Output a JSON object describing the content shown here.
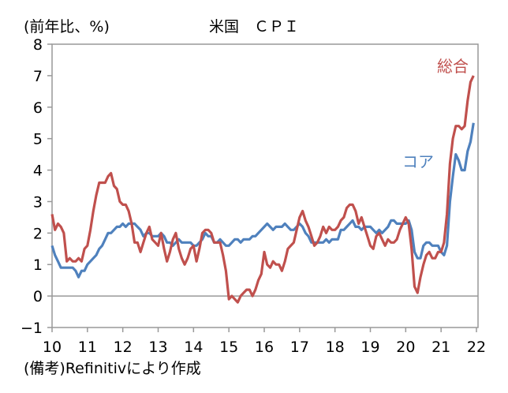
{
  "chart_data": {
    "type": "line",
    "title": "米国　ＣＰＩ",
    "ylabel": "(前年比、%)",
    "source": "(備考)Refinitivにより作成",
    "x_start": "2010-01",
    "x_end": "2021-12",
    "x_frequency": "monthly",
    "x_tick_labels": [
      "10",
      "11",
      "12",
      "13",
      "14",
      "15",
      "16",
      "17",
      "18",
      "19",
      "20",
      "21",
      "22"
    ],
    "ylim": [
      -1,
      8
    ],
    "y_tick_labels": [
      "−1",
      "0",
      "1",
      "2",
      "3",
      "4",
      "5",
      "6",
      "7",
      "8"
    ],
    "grid": false,
    "series": [
      {
        "name": "総合",
        "color": "#C0504D",
        "values": [
          2.6,
          2.1,
          2.3,
          2.2,
          2.0,
          1.1,
          1.2,
          1.1,
          1.1,
          1.2,
          1.1,
          1.5,
          1.6,
          2.1,
          2.7,
          3.2,
          3.6,
          3.6,
          3.6,
          3.8,
          3.9,
          3.5,
          3.4,
          3.0,
          2.9,
          2.9,
          2.7,
          2.3,
          1.7,
          1.7,
          1.4,
          1.7,
          2.0,
          2.2,
          1.8,
          1.7,
          1.6,
          2.0,
          1.5,
          1.1,
          1.4,
          1.8,
          2.0,
          1.5,
          1.2,
          1.0,
          1.2,
          1.5,
          1.6,
          1.1,
          1.5,
          2.0,
          2.1,
          2.1,
          2.0,
          1.7,
          1.7,
          1.7,
          1.3,
          0.8,
          -0.1,
          0.0,
          -0.1,
          -0.2,
          0.0,
          0.1,
          0.2,
          0.2,
          0.0,
          0.2,
          0.5,
          0.7,
          1.4,
          1.0,
          0.9,
          1.1,
          1.0,
          1.0,
          0.8,
          1.1,
          1.5,
          1.6,
          1.7,
          2.1,
          2.5,
          2.7,
          2.4,
          2.2,
          1.9,
          1.6,
          1.7,
          1.9,
          2.2,
          2.0,
          2.2,
          2.1,
          2.1,
          2.2,
          2.4,
          2.5,
          2.8,
          2.9,
          2.9,
          2.7,
          2.3,
          2.5,
          2.2,
          1.9,
          1.6,
          1.5,
          1.9,
          2.0,
          1.8,
          1.6,
          1.8,
          1.7,
          1.7,
          1.8,
          2.1,
          2.3,
          2.5,
          2.3,
          1.5,
          0.3,
          0.1,
          0.6,
          1.0,
          1.3,
          1.4,
          1.2,
          1.2,
          1.4,
          1.4,
          1.7,
          2.6,
          4.2,
          5.0,
          5.4,
          5.4,
          5.3,
          5.4,
          6.2,
          6.8,
          7.0
        ]
      },
      {
        "name": "コア",
        "color": "#4F81BD",
        "values": [
          1.6,
          1.3,
          1.1,
          0.9,
          0.9,
          0.9,
          0.9,
          0.9,
          0.8,
          0.6,
          0.8,
          0.8,
          1.0,
          1.1,
          1.2,
          1.3,
          1.5,
          1.6,
          1.8,
          2.0,
          2.0,
          2.1,
          2.2,
          2.2,
          2.3,
          2.2,
          2.3,
          2.3,
          2.3,
          2.2,
          2.1,
          1.9,
          2.0,
          2.0,
          1.9,
          1.9,
          1.9,
          2.0,
          1.9,
          1.7,
          1.7,
          1.6,
          1.7,
          1.8,
          1.7,
          1.7,
          1.7,
          1.7,
          1.6,
          1.6,
          1.7,
          1.8,
          2.0,
          1.9,
          1.9,
          1.7,
          1.7,
          1.8,
          1.7,
          1.6,
          1.6,
          1.7,
          1.8,
          1.8,
          1.7,
          1.8,
          1.8,
          1.8,
          1.9,
          1.9,
          2.0,
          2.1,
          2.2,
          2.3,
          2.2,
          2.1,
          2.2,
          2.2,
          2.2,
          2.3,
          2.2,
          2.1,
          2.1,
          2.2,
          2.3,
          2.2,
          2.0,
          1.9,
          1.7,
          1.7,
          1.7,
          1.7,
          1.7,
          1.8,
          1.7,
          1.8,
          1.8,
          1.8,
          2.1,
          2.1,
          2.2,
          2.3,
          2.4,
          2.2,
          2.2,
          2.1,
          2.2,
          2.2,
          2.2,
          2.1,
          2.0,
          2.1,
          2.0,
          2.1,
          2.2,
          2.4,
          2.4,
          2.3,
          2.3,
          2.3,
          2.3,
          2.4,
          2.1,
          1.4,
          1.2,
          1.2,
          1.6,
          1.7,
          1.7,
          1.6,
          1.6,
          1.6,
          1.4,
          1.3,
          1.6,
          3.0,
          3.8,
          4.5,
          4.3,
          4.0,
          4.0,
          4.6,
          4.9,
          5.5
        ]
      }
    ]
  }
}
